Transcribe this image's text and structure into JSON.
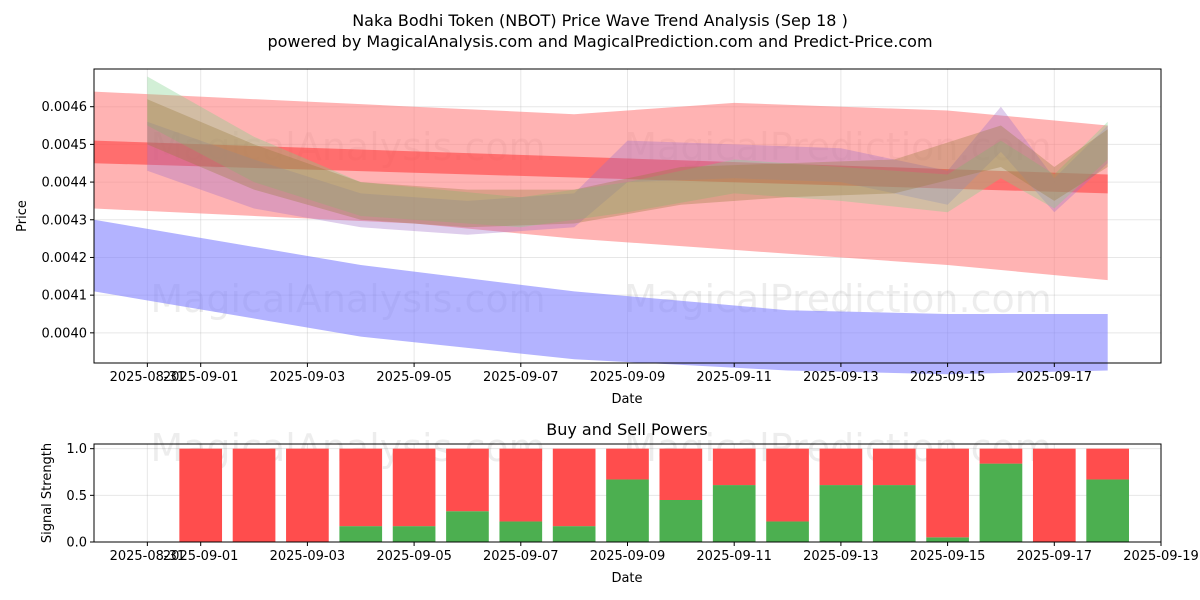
{
  "title": "Naka Bodhi Token (NBOT) Price Wave Trend Analysis (Sep 18 )",
  "subtitle": "powered by MagicalAnalysis.com and MagicalPrediction.com and Predict-Price.com",
  "watermarks": [
    "MagicalAnalysis.com",
    "MagicalPrediction.com"
  ],
  "colors": {
    "buy": "#4caf50",
    "sell": "#ff4d4d",
    "band_red": "#ff8080",
    "band_blue": "#8080ff",
    "band_green": "#7fd18a",
    "band_purple": "#a070c8",
    "band_brown": "#9a7a40"
  },
  "chart_data": [
    {
      "type": "area",
      "title": "",
      "xlabel": "Date",
      "ylabel": "Price",
      "x_range": [
        "2025-08-30",
        "2025-09-19"
      ],
      "ylim": [
        0.00392,
        0.0047
      ],
      "x_tick_labels": [
        "2025-08-31",
        "2025-09-01",
        "2025-09-03",
        "2025-09-05",
        "2025-09-07",
        "2025-09-09",
        "2025-09-11",
        "2025-09-13",
        "2025-09-15",
        "2025-09-17"
      ],
      "y_tick_labels": [
        "0.0040",
        "0.0041",
        "0.0042",
        "0.0043",
        "0.0044",
        "0.0045",
        "0.0046"
      ],
      "grid": true,
      "series": [
        {
          "name": "upper red band",
          "color": "#ff8080",
          "x": [
            "2025-08-30",
            "2025-09-05",
            "2025-09-08",
            "2025-09-11",
            "2025-09-15",
            "2025-09-18"
          ],
          "upper": [
            0.00464,
            0.0046,
            0.00458,
            0.00461,
            0.00459,
            0.00455
          ],
          "lower": [
            0.00433,
            0.00429,
            0.00425,
            0.00422,
            0.00418,
            0.00414
          ]
        },
        {
          "name": "red trend line",
          "color": "#ff4040",
          "x": [
            "2025-08-30",
            "2025-09-18"
          ],
          "upper": [
            0.00451,
            0.00442
          ],
          "lower": [
            0.00445,
            0.00437
          ]
        },
        {
          "name": "lower blue band",
          "color": "#8080ff",
          "x": [
            "2025-08-30",
            "2025-09-04",
            "2025-09-08",
            "2025-09-12",
            "2025-09-15",
            "2025-09-18"
          ],
          "upper": [
            0.0043,
            0.00418,
            0.00411,
            0.00406,
            0.00405,
            0.00405
          ],
          "lower": [
            0.00411,
            0.00399,
            0.00393,
            0.0039,
            0.00389,
            0.0039
          ]
        },
        {
          "name": "purple wave",
          "color": "#a070c8",
          "x": [
            "2025-08-31",
            "2025-09-02",
            "2025-09-04",
            "2025-09-06",
            "2025-09-08",
            "2025-09-09",
            "2025-09-11",
            "2025-09-13",
            "2025-09-15",
            "2025-09-16",
            "2025-09-17",
            "2025-09-18"
          ],
          "upper": [
            0.00456,
            0.00446,
            0.00437,
            0.00435,
            0.00437,
            0.00451,
            0.0045,
            0.00449,
            0.00443,
            0.0046,
            0.00441,
            0.00455
          ],
          "lower": [
            0.00443,
            0.00433,
            0.00428,
            0.00426,
            0.00428,
            0.0044,
            0.00441,
            0.0044,
            0.00434,
            0.00448,
            0.00432,
            0.00445
          ]
        },
        {
          "name": "green wave",
          "color": "#7fd18a",
          "x": [
            "2025-08-31",
            "2025-09-02",
            "2025-09-04",
            "2025-09-07",
            "2025-09-09",
            "2025-09-11",
            "2025-09-13",
            "2025-09-15",
            "2025-09-16",
            "2025-09-17",
            "2025-09-18"
          ],
          "upper": [
            0.00468,
            0.00452,
            0.0044,
            0.00436,
            0.0044,
            0.00446,
            0.00444,
            0.00442,
            0.00451,
            0.00442,
            0.00456
          ],
          "lower": [
            0.00455,
            0.0044,
            0.00431,
            0.00428,
            0.00432,
            0.00437,
            0.00435,
            0.00432,
            0.00441,
            0.00433,
            0.00446
          ]
        },
        {
          "name": "brown wave",
          "color": "#9a7a40",
          "x": [
            "2025-08-31",
            "2025-09-02",
            "2025-09-04",
            "2025-09-06",
            "2025-09-08",
            "2025-09-10",
            "2025-09-12",
            "2025-09-14",
            "2025-09-16",
            "2025-09-17",
            "2025-09-18"
          ],
          "upper": [
            0.00462,
            0.0045,
            0.0044,
            0.00438,
            0.00438,
            0.00444,
            0.00445,
            0.00446,
            0.00455,
            0.00444,
            0.00454
          ],
          "lower": [
            0.0045,
            0.00438,
            0.0043,
            0.00428,
            0.00429,
            0.00434,
            0.00436,
            0.00437,
            0.00444,
            0.00435,
            0.00444
          ]
        }
      ]
    },
    {
      "type": "bar",
      "title": "Buy and Sell Powers",
      "xlabel": "Date",
      "ylabel": "Signal Strength",
      "x_range": [
        "2025-08-30",
        "2025-09-19"
      ],
      "ylim": [
        0,
        1.05
      ],
      "x_tick_labels": [
        "2025-08-31",
        "2025-09-01",
        "2025-09-03",
        "2025-09-05",
        "2025-09-07",
        "2025-09-09",
        "2025-09-11",
        "2025-09-13",
        "2025-09-15",
        "2025-09-17",
        "2025-09-19"
      ],
      "y_tick_labels": [
        "0.0",
        "0.5",
        "1.0"
      ],
      "grid": true,
      "categories": [
        "2025-09-01",
        "2025-09-02",
        "2025-09-03",
        "2025-09-04",
        "2025-09-05",
        "2025-09-06",
        "2025-09-07",
        "2025-09-08",
        "2025-09-09",
        "2025-09-10",
        "2025-09-11",
        "2025-09-12",
        "2025-09-13",
        "2025-09-14",
        "2025-09-15",
        "2025-09-16",
        "2025-09-17",
        "2025-09-18"
      ],
      "series": [
        {
          "name": "Buy",
          "color": "#4caf50",
          "values": [
            0,
            0,
            0,
            0.17,
            0.17,
            0.33,
            0.22,
            0.17,
            0.67,
            0.45,
            0.61,
            0.22,
            0.61,
            0.61,
            0.05,
            0.84,
            0,
            0.67
          ]
        },
        {
          "name": "Sell",
          "color": "#ff4d4d",
          "values": [
            1,
            1,
            1,
            0.83,
            0.83,
            0.67,
            0.78,
            0.83,
            0.33,
            0.55,
            0.39,
            0.78,
            0.39,
            0.39,
            0.95,
            0.16,
            1,
            0.33
          ]
        }
      ]
    }
  ]
}
